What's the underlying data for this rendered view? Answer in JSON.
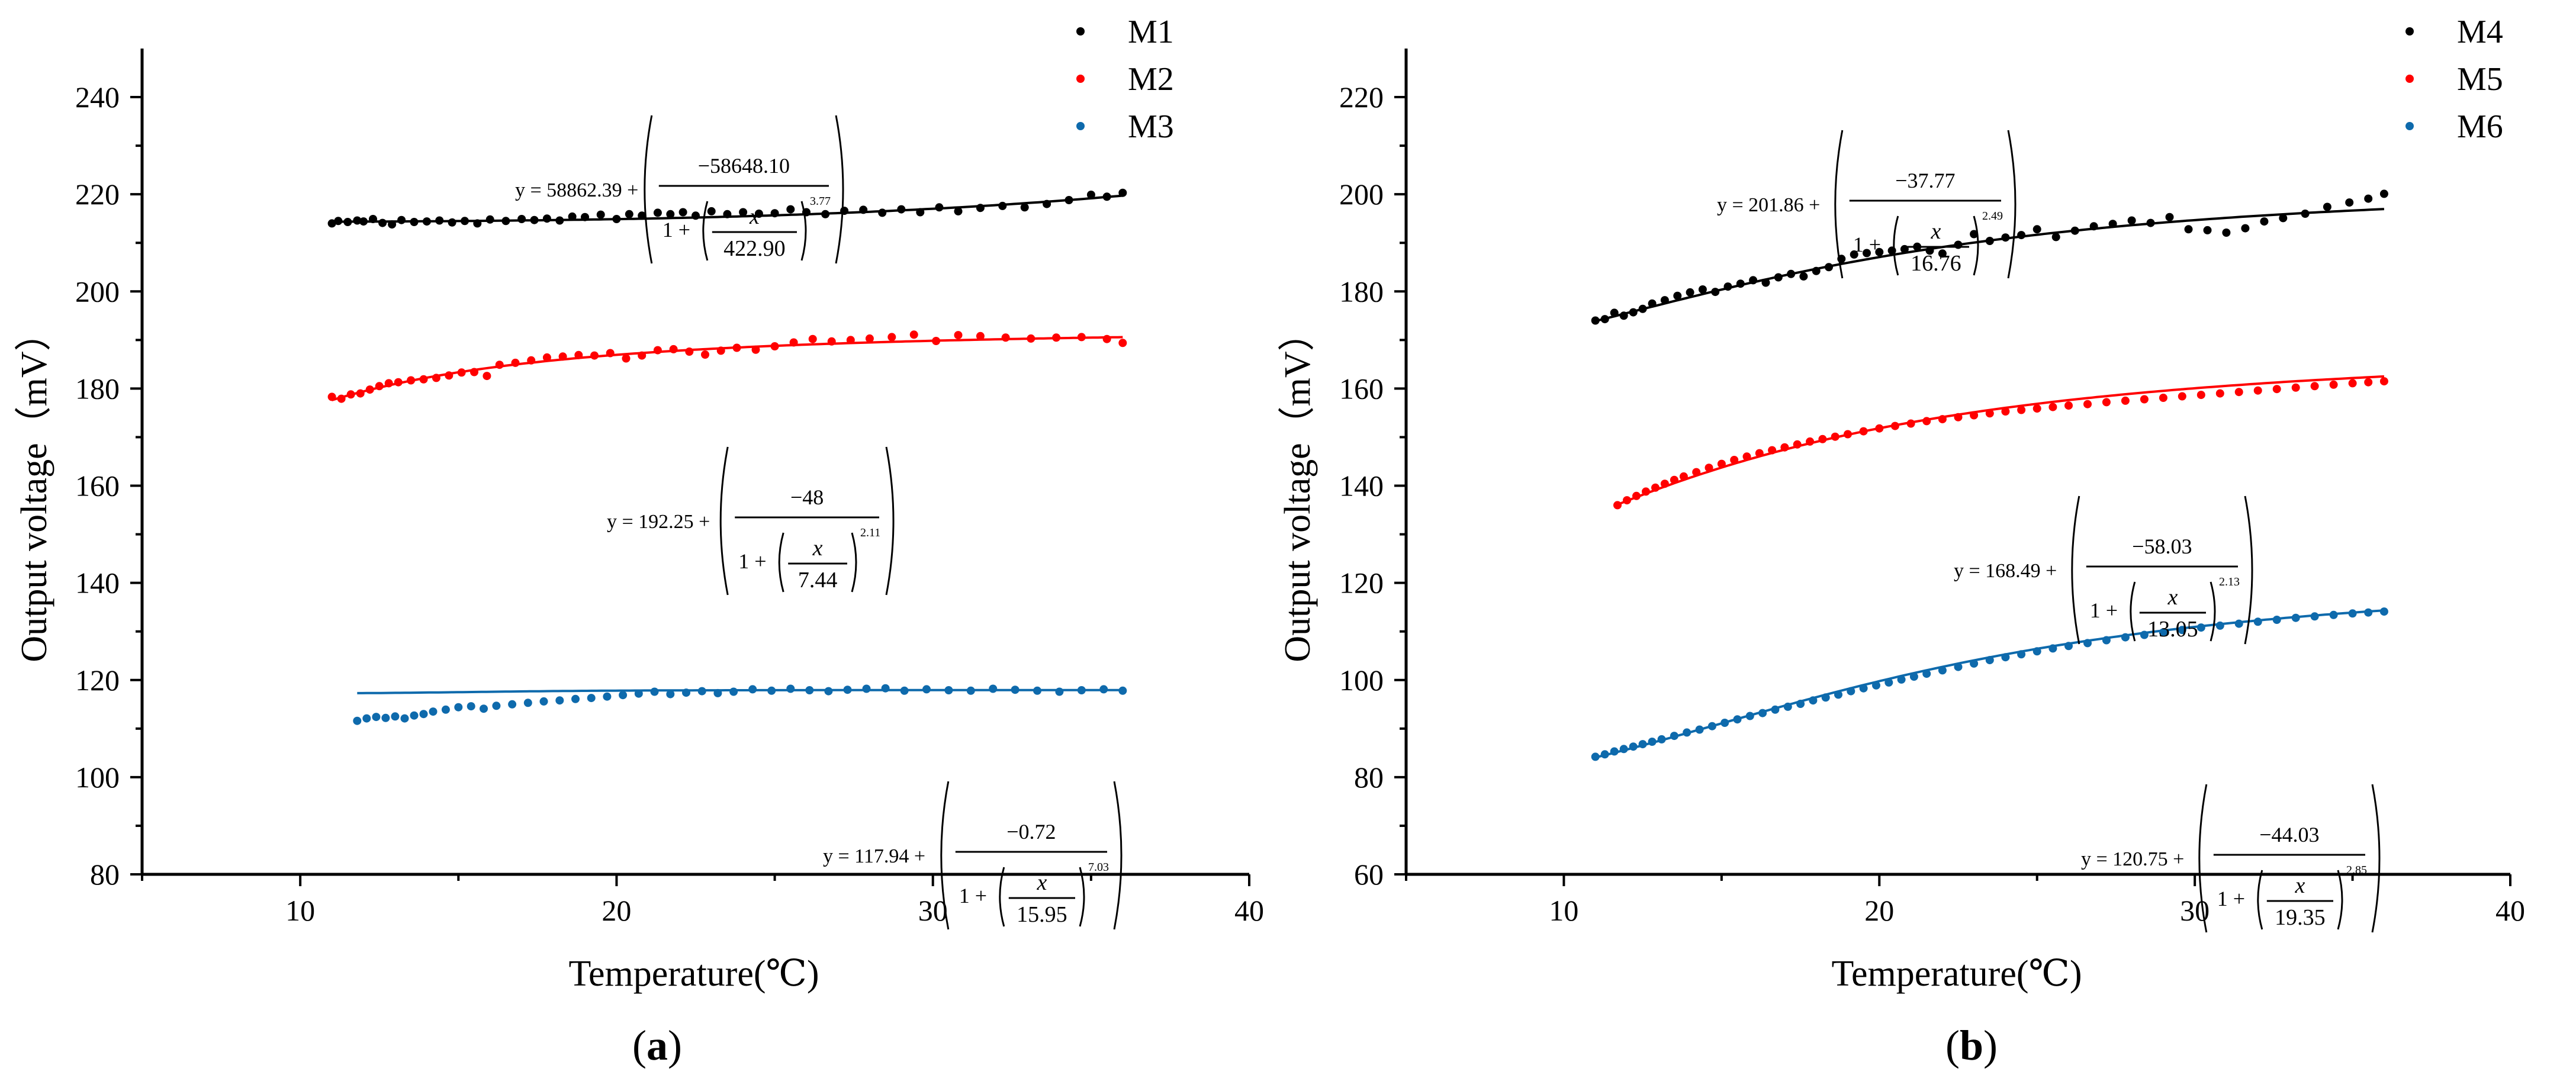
{
  "chart_data": [
    {
      "type": "scatter",
      "panel_label": "a",
      "xlabel": "Temperature(℃)",
      "ylabel": "Output voltage（mV）",
      "xlim": [
        5,
        40
      ],
      "ylim": [
        80,
        250
      ],
      "xticks": [
        10,
        20,
        30,
        40
      ],
      "yticks": [
        80,
        100,
        120,
        140,
        160,
        180,
        200,
        220,
        240
      ],
      "legend_position": "top-right",
      "series": [
        {
          "name": "M1",
          "color": "#000000",
          "fit": {
            "y0": "58862.39",
            "A": "−58648.10",
            "x0": "422.90",
            "p": "3.77"
          },
          "x": [
            11.0,
            11.2,
            11.5,
            11.8,
            12.0,
            12.3,
            12.6,
            12.9,
            13.2,
            13.6,
            14.0,
            14.4,
            14.8,
            15.2,
            15.6,
            16.0,
            16.5,
            17.0,
            17.4,
            17.8,
            18.2,
            18.6,
            19.0,
            19.5,
            20.0,
            20.4,
            20.8,
            21.3,
            21.7,
            22.1,
            22.5,
            23.0,
            23.5,
            24.0,
            24.5,
            25.0,
            25.5,
            26.0,
            26.6,
            27.2,
            27.8,
            28.4,
            29.0,
            29.6,
            30.2,
            30.8,
            31.5,
            32.2,
            32.9,
            33.6,
            34.3,
            35.0,
            35.5,
            36.0
          ],
          "y": [
            214.0,
            214.5,
            214.3,
            214.6,
            214.4,
            214.9,
            214.1,
            213.8,
            214.7,
            214.3,
            214.4,
            214.6,
            214.2,
            214.5,
            214.0,
            214.8,
            214.5,
            214.9,
            214.7,
            215.0,
            214.6,
            215.4,
            215.3,
            215.8,
            214.9,
            215.9,
            215.6,
            216.2,
            215.9,
            216.3,
            215.6,
            216.5,
            215.9,
            216.3,
            216.0,
            216.1,
            216.9,
            216.3,
            215.9,
            216.6,
            216.8,
            216.2,
            216.9,
            216.3,
            217.3,
            216.5,
            217.2,
            217.6,
            217.3,
            218.0,
            218.8,
            219.9,
            219.5,
            220.3
          ]
        },
        {
          "name": "M2",
          "color": "#ff0000",
          "fit": {
            "y0": "192.25",
            "A": "−48",
            "x0": "7.44",
            "p": "2.11"
          },
          "x": [
            11.0,
            11.3,
            11.6,
            11.9,
            12.2,
            12.5,
            12.8,
            13.1,
            13.5,
            13.9,
            14.3,
            14.7,
            15.1,
            15.5,
            15.9,
            16.3,
            16.8,
            17.3,
            17.8,
            18.3,
            18.8,
            19.3,
            19.8,
            20.3,
            20.8,
            21.3,
            21.8,
            22.3,
            22.8,
            23.3,
            23.8,
            24.4,
            25.0,
            25.6,
            26.2,
            26.8,
            27.4,
            28.0,
            28.7,
            29.4,
            30.1,
            30.8,
            31.5,
            32.3,
            33.1,
            33.9,
            34.7,
            35.5,
            36.0
          ],
          "y": [
            178.3,
            177.9,
            178.8,
            179.0,
            179.8,
            180.5,
            181.1,
            181.3,
            181.7,
            181.9,
            182.2,
            182.7,
            183.3,
            183.4,
            182.6,
            184.9,
            185.3,
            185.8,
            186.4,
            186.6,
            186.9,
            186.8,
            187.3,
            186.2,
            186.8,
            187.9,
            188.1,
            187.6,
            187.0,
            187.8,
            188.4,
            188.0,
            188.7,
            189.5,
            190.2,
            189.7,
            190.0,
            190.3,
            190.6,
            191.1,
            189.8,
            191.0,
            190.8,
            190.5,
            190.3,
            190.5,
            190.6,
            190.2,
            189.4
          ]
        },
        {
          "name": "M3",
          "color": "#0e6aac",
          "fit": {
            "y0": "117.94",
            "A": "−0.72",
            "x0": "15.95",
            "p": "7.03"
          },
          "x": [
            11.8,
            12.1,
            12.4,
            12.7,
            13.0,
            13.3,
            13.6,
            13.9,
            14.2,
            14.6,
            15.0,
            15.4,
            15.8,
            16.2,
            16.7,
            17.2,
            17.7,
            18.2,
            18.7,
            19.2,
            19.7,
            20.2,
            20.7,
            21.2,
            21.7,
            22.2,
            22.7,
            23.2,
            23.7,
            24.3,
            24.9,
            25.5,
            26.1,
            26.7,
            27.3,
            27.9,
            28.5,
            29.1,
            29.8,
            30.5,
            31.2,
            31.9,
            32.6,
            33.3,
            34.0,
            34.7,
            35.4,
            36.0
          ],
          "y": [
            111.6,
            112.1,
            112.4,
            112.2,
            112.5,
            112.1,
            112.7,
            113.0,
            113.5,
            113.9,
            114.4,
            114.6,
            114.1,
            114.7,
            115.0,
            115.3,
            115.6,
            115.8,
            116.1,
            116.3,
            116.6,
            116.9,
            117.2,
            117.6,
            117.1,
            117.4,
            117.7,
            117.3,
            117.6,
            118.1,
            117.8,
            118.2,
            117.9,
            117.7,
            118.0,
            118.2,
            118.3,
            117.8,
            118.1,
            117.9,
            117.8,
            118.2,
            118.0,
            117.8,
            117.6,
            117.9,
            118.1,
            117.8
          ]
        }
      ]
    },
    {
      "type": "scatter",
      "panel_label": "b",
      "xlabel": "Temperature(℃)",
      "ylabel": "Output voltage（mV）",
      "xlim": [
        5,
        40
      ],
      "ylim": [
        60,
        230
      ],
      "xticks": [
        10,
        20,
        30,
        40
      ],
      "yticks": [
        60,
        80,
        100,
        120,
        140,
        160,
        180,
        200,
        220
      ],
      "legend_position": "top-right",
      "series": [
        {
          "name": "M4",
          "color": "#000000",
          "fit": {
            "y0": "201.86",
            "A": "−37.77",
            "x0": "16.76",
            "p": "2.49"
          },
          "x": [
            11.0,
            11.3,
            11.6,
            11.9,
            12.2,
            12.5,
            12.8,
            13.2,
            13.6,
            14.0,
            14.4,
            14.8,
            15.2,
            15.6,
            16.0,
            16.4,
            16.8,
            17.2,
            17.6,
            18.0,
            18.4,
            18.8,
            19.2,
            19.6,
            20.0,
            20.4,
            20.8,
            21.2,
            21.6,
            22.0,
            22.5,
            23.0,
            23.5,
            24.0,
            24.5,
            25.0,
            25.6,
            26.2,
            26.8,
            27.4,
            28.0,
            28.6,
            29.2,
            29.8,
            30.4,
            31.0,
            31.6,
            32.2,
            32.8,
            33.5,
            34.2,
            34.9,
            35.5,
            36.0
          ],
          "y": [
            174.0,
            174.3,
            175.6,
            175.0,
            175.7,
            176.4,
            177.5,
            178.2,
            179.1,
            179.8,
            180.4,
            179.9,
            181.0,
            181.6,
            182.3,
            181.8,
            182.9,
            183.6,
            183.1,
            184.2,
            185.0,
            186.7,
            187.6,
            187.9,
            188.1,
            188.4,
            188.7,
            189.2,
            188.4,
            187.8,
            189.6,
            191.8,
            190.4,
            191.1,
            191.6,
            192.8,
            191.2,
            192.5,
            193.4,
            193.9,
            194.6,
            194.1,
            195.3,
            192.8,
            192.6,
            192.1,
            193.0,
            194.4,
            195.1,
            196.0,
            197.4,
            198.3,
            199.1,
            200.1
          ]
        },
        {
          "name": "M5",
          "color": "#ff0000",
          "fit": {
            "y0": "168.49",
            "A": "−58.03",
            "x0": "13.05",
            "p": "2.13"
          },
          "x": [
            11.7,
            12.0,
            12.3,
            12.6,
            12.9,
            13.2,
            13.5,
            13.8,
            14.2,
            14.6,
            15.0,
            15.4,
            15.8,
            16.2,
            16.6,
            17.0,
            17.4,
            17.8,
            18.2,
            18.6,
            19.0,
            19.5,
            20.0,
            20.5,
            21.0,
            21.5,
            22.0,
            22.5,
            23.0,
            23.5,
            24.0,
            24.5,
            25.0,
            25.5,
            26.0,
            26.6,
            27.2,
            27.8,
            28.4,
            29.0,
            29.6,
            30.2,
            30.8,
            31.4,
            32.0,
            32.6,
            33.2,
            33.8,
            34.4,
            35.0,
            35.5,
            36.0
          ],
          "y": [
            136.0,
            137.0,
            137.9,
            138.8,
            139.6,
            140.4,
            141.2,
            141.9,
            142.8,
            143.7,
            144.5,
            145.3,
            146.0,
            146.7,
            147.3,
            147.9,
            148.5,
            149.1,
            149.6,
            150.1,
            150.6,
            151.2,
            151.8,
            152.3,
            152.8,
            153.3,
            153.7,
            154.1,
            154.5,
            154.9,
            155.3,
            155.6,
            155.9,
            156.2,
            156.5,
            156.8,
            157.2,
            157.5,
            157.8,
            158.1,
            158.4,
            158.7,
            159.0,
            159.3,
            159.6,
            159.9,
            160.2,
            160.5,
            160.8,
            161.1,
            161.3,
            161.5
          ]
        },
        {
          "name": "M6",
          "color": "#0e6aac",
          "fit": {
            "y0": "120.75",
            "A": "−44.03",
            "x0": "19.35",
            "p": "2.85"
          },
          "x": [
            11.0,
            11.3,
            11.6,
            11.9,
            12.2,
            12.5,
            12.8,
            13.1,
            13.5,
            13.9,
            14.3,
            14.7,
            15.1,
            15.5,
            15.9,
            16.3,
            16.7,
            17.1,
            17.5,
            17.9,
            18.3,
            18.7,
            19.1,
            19.5,
            19.9,
            20.3,
            20.7,
            21.1,
            21.5,
            22.0,
            22.5,
            23.0,
            23.5,
            24.0,
            24.5,
            25.0,
            25.5,
            26.0,
            26.6,
            27.2,
            27.8,
            28.4,
            29.0,
            29.6,
            30.2,
            30.8,
            31.4,
            32.0,
            32.6,
            33.2,
            33.8,
            34.4,
            35.0,
            35.5,
            36.0
          ],
          "y": [
            84.2,
            84.7,
            85.3,
            85.8,
            86.3,
            86.8,
            87.3,
            87.8,
            88.5,
            89.2,
            89.8,
            90.5,
            91.2,
            91.9,
            92.6,
            93.2,
            93.9,
            94.5,
            95.1,
            95.8,
            96.4,
            97.0,
            97.7,
            98.3,
            98.9,
            99.5,
            100.1,
            100.7,
            101.3,
            102.0,
            102.7,
            103.4,
            104.1,
            104.7,
            105.3,
            105.9,
            106.5,
            107.0,
            107.6,
            108.2,
            108.8,
            109.3,
            109.8,
            110.3,
            110.8,
            111.2,
            111.6,
            112.0,
            112.4,
            112.8,
            113.1,
            113.4,
            113.7,
            113.9,
            114.1
          ]
        }
      ]
    }
  ]
}
